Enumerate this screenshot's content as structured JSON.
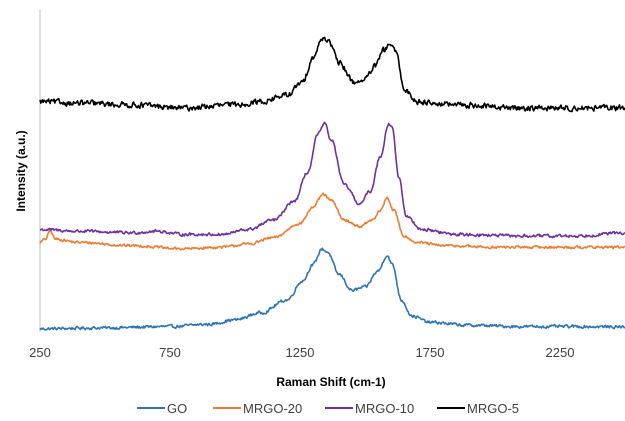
{
  "chart_data": {
    "type": "line",
    "title": "",
    "xlabel": "Raman Shift (cm-1)",
    "ylabel": "Intensity (a.u.)",
    "xlim": [
      250,
      2500
    ],
    "ylim": [
      0,
      100
    ],
    "x_ticks": [
      "250",
      "750",
      "1250",
      "1750",
      "2250"
    ],
    "y_ticks_visible": false,
    "grid": false,
    "legend_position": "bottom",
    "series": [
      {
        "name": "GO",
        "color": "#2e75b6",
        "noise": 0.7,
        "points": [
          [
            250,
            1
          ],
          [
            500,
            1.3
          ],
          [
            750,
            1.7
          ],
          [
            900,
            2.4
          ],
          [
            1000,
            3.8
          ],
          [
            1100,
            6
          ],
          [
            1200,
            10
          ],
          [
            1260,
            16
          ],
          [
            1300,
            21
          ],
          [
            1335,
            26
          ],
          [
            1355,
            25
          ],
          [
            1400,
            18
          ],
          [
            1450,
            13
          ],
          [
            1500,
            14
          ],
          [
            1550,
            19
          ],
          [
            1585,
            24
          ],
          [
            1605,
            21
          ],
          [
            1640,
            10
          ],
          [
            1680,
            5
          ],
          [
            1750,
            3
          ],
          [
            1900,
            2.1
          ],
          [
            2100,
            1.7
          ],
          [
            2300,
            1.7
          ],
          [
            2500,
            1.6
          ]
        ]
      },
      {
        "name": "MRGO-20",
        "color": "#ed7d31",
        "noise": 0.6,
        "points": [
          [
            250,
            28
          ],
          [
            270,
            29
          ],
          [
            290,
            31.5
          ],
          [
            310,
            29
          ],
          [
            400,
            28
          ],
          [
            600,
            27
          ],
          [
            800,
            26
          ],
          [
            950,
            26.5
          ],
          [
            1050,
            27.5
          ],
          [
            1150,
            29.5
          ],
          [
            1250,
            34
          ],
          [
            1300,
            39
          ],
          [
            1340,
            43
          ],
          [
            1370,
            41
          ],
          [
            1420,
            35
          ],
          [
            1480,
            33
          ],
          [
            1530,
            35
          ],
          [
            1560,
            38
          ],
          [
            1585,
            42
          ],
          [
            1610,
            38
          ],
          [
            1650,
            30
          ],
          [
            1700,
            28
          ],
          [
            1800,
            27
          ],
          [
            2000,
            26.5
          ],
          [
            2200,
            26.5
          ],
          [
            2500,
            26.5
          ]
        ]
      },
      {
        "name": "MRGO-10",
        "color": "#7030a0",
        "noise": 0.7,
        "points": [
          [
            250,
            32
          ],
          [
            400,
            31.5
          ],
          [
            600,
            31
          ],
          [
            700,
            31.5
          ],
          [
            800,
            30.5
          ],
          [
            950,
            30.5
          ],
          [
            1050,
            32
          ],
          [
            1150,
            35
          ],
          [
            1230,
            41
          ],
          [
            1280,
            50
          ],
          [
            1320,
            62
          ],
          [
            1345,
            65
          ],
          [
            1370,
            60
          ],
          [
            1420,
            46
          ],
          [
            1480,
            40
          ],
          [
            1520,
            44
          ],
          [
            1560,
            55
          ],
          [
            1590,
            65
          ],
          [
            1605,
            64
          ],
          [
            1630,
            48
          ],
          [
            1660,
            36
          ],
          [
            1720,
            32
          ],
          [
            1850,
            30.5
          ],
          [
            2100,
            30
          ],
          [
            2300,
            30
          ],
          [
            2500,
            31
          ]
        ]
      },
      {
        "name": "MRGO-5",
        "color": "#000000",
        "noise": 1.3,
        "points": [
          [
            250,
            72
          ],
          [
            400,
            71.5
          ],
          [
            600,
            71
          ],
          [
            800,
            70
          ],
          [
            1000,
            71
          ],
          [
            1100,
            72
          ],
          [
            1200,
            74
          ],
          [
            1260,
            78
          ],
          [
            1300,
            86
          ],
          [
            1340,
            92
          ],
          [
            1360,
            91
          ],
          [
            1400,
            84
          ],
          [
            1460,
            78
          ],
          [
            1500,
            79
          ],
          [
            1540,
            83
          ],
          [
            1570,
            88
          ],
          [
            1600,
            90
          ],
          [
            1620,
            87
          ],
          [
            1650,
            76
          ],
          [
            1700,
            72
          ],
          [
            1850,
            71
          ],
          [
            2100,
            70
          ],
          [
            2300,
            70
          ],
          [
            2500,
            70
          ]
        ]
      }
    ]
  }
}
